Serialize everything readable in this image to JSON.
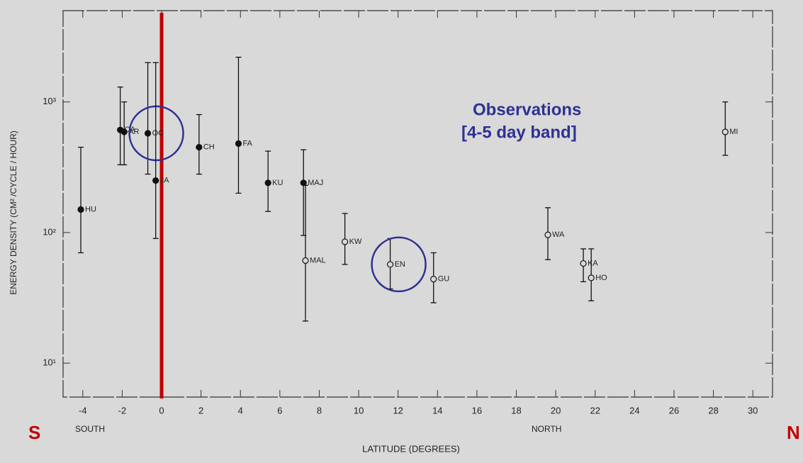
{
  "chart_data": {
    "type": "scatter",
    "ylabel": "ENERGY DENSITY (CM² /CYCLE / HOUR)",
    "xlabel": "LATITUDE (DEGREES)",
    "south_label": "SOUTH",
    "north_label": "NORTH",
    "s_marker": "S",
    "n_marker": "N",
    "annotation": [
      "Observations",
      "[4-5 day band]"
    ],
    "log_y": true,
    "xlim": [
      -5,
      31
    ],
    "ylim": [
      5.5,
      5000
    ],
    "xticks": [
      -4,
      -2,
      0,
      2,
      4,
      6,
      8,
      10,
      12,
      14,
      16,
      18,
      20,
      22,
      24,
      26,
      28,
      30
    ],
    "yticks": [
      {
        "value": 10,
        "label": "10¹"
      },
      {
        "value": 100,
        "label": "10²"
      },
      {
        "value": 1000,
        "label": "10³"
      }
    ],
    "labels": [
      "HU",
      "CA",
      "AR",
      "OC",
      "JA",
      "CH",
      "FA",
      "KU",
      "MAJ",
      "MAL",
      "KW",
      "EN",
      "GU",
      "WA",
      "KA",
      "HO",
      "MI"
    ],
    "x": [
      -4.1,
      -2.1,
      -1.9,
      -0.7,
      -0.3,
      1.9,
      3.9,
      5.4,
      7.2,
      7.3,
      9.3,
      11.6,
      13.8,
      19.6,
      21.4,
      21.8,
      28.6
    ],
    "y": [
      150,
      610,
      590,
      575,
      250,
      450,
      480,
      240,
      240,
      61,
      85,
      57,
      44,
      96,
      58,
      45,
      590
    ],
    "low": [
      70,
      330,
      330,
      280,
      90,
      280,
      200,
      145,
      95,
      21,
      57,
      37,
      29,
      62,
      42,
      30,
      390
    ],
    "high": [
      450,
      1300,
      1000,
      2000,
      2000,
      800,
      2200,
      420,
      430,
      230,
      140,
      90,
      70,
      155,
      75,
      75,
      1000
    ],
    "filled": [
      true,
      true,
      true,
      true,
      true,
      true,
      true,
      true,
      true,
      false,
      false,
      false,
      false,
      false,
      false,
      false,
      false
    ],
    "highlighted": [
      "OC",
      "EN"
    ],
    "zero_line_color": "#c00000",
    "highlight_color": "#2e3192",
    "point_color": "#111111"
  }
}
